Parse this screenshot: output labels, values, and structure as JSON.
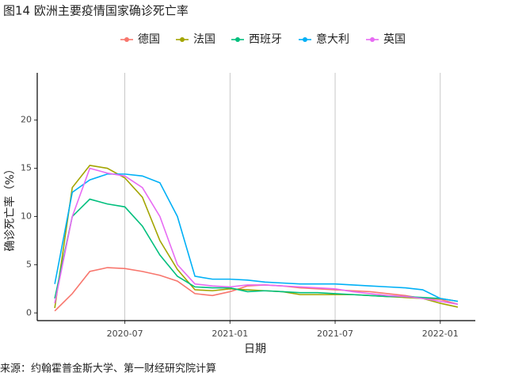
{
  "chart_data": {
    "type": "line",
    "title": "图14 欧洲主要疫情国家确诊死亡率",
    "x_label": "日期",
    "y_label": "确诊死亡率（%）",
    "source": "来源：约翰霍普金斯大学、第一财经研究院计算",
    "x": [
      "2020-03",
      "2020-04",
      "2020-05",
      "2020-06",
      "2020-07",
      "2020-08",
      "2020-09",
      "2020-10",
      "2020-11",
      "2020-12",
      "2021-01",
      "2021-02",
      "2021-03",
      "2021-04",
      "2021-05",
      "2021-06",
      "2021-07",
      "2021-08",
      "2021-09",
      "2021-10",
      "2021-11",
      "2021-12",
      "2022-01",
      "2022-02"
    ],
    "series": [
      {
        "name": "德国",
        "color": "#f8766d",
        "values": [
          0.2,
          2,
          4.3,
          4.7,
          4.6,
          4.3,
          3.9,
          3.3,
          2,
          1.8,
          2.2,
          2.8,
          2.9,
          2.8,
          2.6,
          2.5,
          2.4,
          2.3,
          2.2,
          2.0,
          1.8,
          1.5,
          1.4,
          0.9
        ]
      },
      {
        "name": "法国",
        "color": "#a3a500",
        "values": [
          0.5,
          13,
          15.3,
          15,
          14,
          12,
          7.5,
          4.5,
          2.4,
          2.3,
          2.5,
          2.4,
          2.3,
          2.2,
          1.9,
          1.9,
          1.9,
          1.9,
          1.8,
          1.7,
          1.6,
          1.5,
          1.0,
          0.6
        ]
      },
      {
        "name": "西班牙",
        "color": "#00bf7d",
        "values": [
          1.5,
          10,
          11.8,
          11.3,
          11,
          9,
          6,
          3.8,
          2.7,
          2.6,
          2.6,
          2.2,
          2.3,
          2.2,
          2.1,
          2.1,
          2.0,
          1.9,
          1.8,
          1.7,
          1.7,
          1.6,
          1.5,
          1.2
        ]
      },
      {
        "name": "意大利",
        "color": "#00b0f6",
        "values": [
          3,
          12.5,
          13.8,
          14.4,
          14.4,
          14.2,
          13.5,
          10,
          3.8,
          3.5,
          3.5,
          3.4,
          3.2,
          3.1,
          3.0,
          3.0,
          3.0,
          2.9,
          2.8,
          2.7,
          2.6,
          2.4,
          1.5,
          1.2
        ]
      },
      {
        "name": "英国",
        "color": "#e76bf3",
        "values": [
          1,
          10,
          15,
          14.5,
          14.2,
          13,
          10,
          5,
          3,
          2.8,
          2.7,
          2.9,
          2.9,
          2.8,
          2.7,
          2.6,
          2.5,
          2.2,
          2,
          1.8,
          1.7,
          1.5,
          1.2,
          0.9
        ]
      }
    ],
    "xlim": [
      "2020-02",
      "2022-03"
    ],
    "xticks": [
      "2020-07",
      "2021-01",
      "2021-07",
      "2022-01"
    ],
    "ylim": [
      -0.8,
      24.9
    ],
    "yticks": [
      0,
      5,
      10,
      15,
      20
    ],
    "grid": "x",
    "legend": "top"
  }
}
